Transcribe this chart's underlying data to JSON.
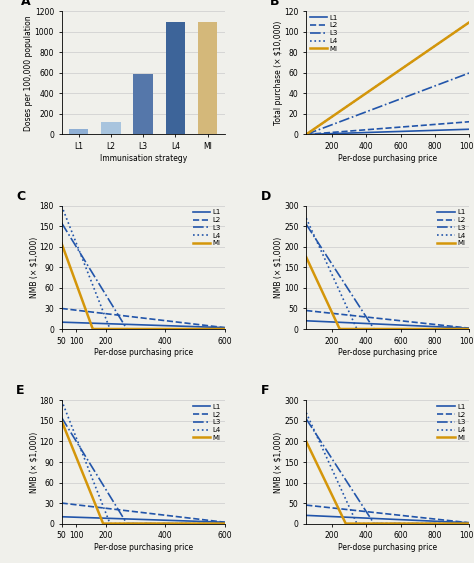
{
  "bar_categories": [
    "L1",
    "L2",
    "L3",
    "L4",
    "MI"
  ],
  "bar_values": [
    50,
    120,
    590,
    1100,
    1100
  ],
  "bar_colors": [
    "#8fafd4",
    "#a8c4de",
    "#5577aa",
    "#3d6499",
    "#d4b87a"
  ],
  "bar_ylabel": "Doses per 100,000 population",
  "bar_xlabel": "Immunisation strategy",
  "bar_ylim": [
    0,
    1200
  ],
  "bar_yticks": [
    0,
    200,
    400,
    600,
    800,
    1000,
    1200
  ],
  "line_colors": {
    "L1": "#2255aa",
    "L2": "#2255aa",
    "L3": "#2255aa",
    "L4": "#2255aa",
    "MI": "#d4960a"
  },
  "line_styles": {
    "L1": "-",
    "L2": "--",
    "L3": "-.",
    "L4": ":",
    "MI": "-"
  },
  "line_widths": {
    "L1": 1.2,
    "L2": 1.2,
    "L3": 1.2,
    "L4": 1.2,
    "MI": 1.8
  },
  "panel_B": {
    "xlabel": "Per-dose purchasing price",
    "ylabel": "Total purchase (× $10,000)",
    "xlim": [
      50,
      1000
    ],
    "ylim": [
      0,
      120
    ],
    "yticks": [
      0,
      20,
      40,
      60,
      80,
      100,
      120
    ],
    "xticks": [
      200,
      400,
      600,
      800,
      1000
    ],
    "slopes": {
      "L1": 0.0053,
      "L2": 0.013,
      "L3": 0.063,
      "L4": 0.115,
      "MI": 0.115
    }
  },
  "panel_C": {
    "xlabel": "Per-dose purchasing price",
    "ylabel": "NMB (× $1,000)",
    "xlim": [
      50,
      600
    ],
    "ylim": [
      0,
      180
    ],
    "yticks": [
      0,
      30,
      60,
      90,
      120,
      150,
      180
    ],
    "xticks": [
      50,
      100,
      200,
      400,
      600
    ],
    "lines": {
      "L1": {
        "x0": 50,
        "y0": 10,
        "x1": 600,
        "y1": 2
      },
      "L2": {
        "x0": 50,
        "y0": 30,
        "x1": 600,
        "y1": 2
      },
      "L3": {
        "x0": 50,
        "y0": 155,
        "x1": 270,
        "y1": 0
      },
      "L4": {
        "x0": 50,
        "y0": 180,
        "x1": 213,
        "y1": 0
      },
      "MI": {
        "x0": 50,
        "y0": 125,
        "x1": 155,
        "y1": 0
      }
    }
  },
  "panel_D": {
    "xlabel": "Per-dose purchasing price",
    "ylabel": "NMB (× $1,000)",
    "xlim": [
      50,
      1000
    ],
    "ylim": [
      0,
      300
    ],
    "yticks": [
      0,
      50,
      100,
      150,
      200,
      250,
      300
    ],
    "xticks": [
      200,
      400,
      600,
      800,
      1000
    ],
    "lines": {
      "L1": {
        "x0": 50,
        "y0": 20,
        "x1": 1000,
        "y1": 2
      },
      "L2": {
        "x0": 50,
        "y0": 45,
        "x1": 1000,
        "y1": 2
      },
      "L3": {
        "x0": 50,
        "y0": 255,
        "x1": 445,
        "y1": 0
      },
      "L4": {
        "x0": 50,
        "y0": 270,
        "x1": 345,
        "y1": 0
      },
      "MI": {
        "x0": 50,
        "y0": 175,
        "x1": 245,
        "y1": 0
      }
    }
  },
  "panel_E": {
    "xlabel": "Per-dose purchasing price",
    "ylabel": "NMB (× $1,000)",
    "xlim": [
      50,
      600
    ],
    "ylim": [
      0,
      180
    ],
    "yticks": [
      0,
      30,
      60,
      90,
      120,
      150,
      180
    ],
    "xticks": [
      50,
      100,
      200,
      400,
      600
    ],
    "lines": {
      "L1": {
        "x0": 50,
        "y0": 10,
        "x1": 600,
        "y1": 2
      },
      "L2": {
        "x0": 50,
        "y0": 30,
        "x1": 600,
        "y1": 2
      },
      "L3": {
        "x0": 50,
        "y0": 155,
        "x1": 270,
        "y1": 0
      },
      "L4": {
        "x0": 50,
        "y0": 180,
        "x1": 213,
        "y1": 0
      },
      "MI": {
        "x0": 50,
        "y0": 150,
        "x1": 190,
        "y1": 0
      }
    }
  },
  "panel_F": {
    "xlabel": "Per-dose purchasing price",
    "ylabel": "NMB (× $1,000)",
    "xlim": [
      50,
      1000
    ],
    "ylim": [
      0,
      300
    ],
    "yticks": [
      0,
      50,
      100,
      150,
      200,
      250,
      300
    ],
    "xticks": [
      200,
      400,
      600,
      800,
      1000
    ],
    "lines": {
      "L1": {
        "x0": 50,
        "y0": 20,
        "x1": 1000,
        "y1": 2
      },
      "L2": {
        "x0": 50,
        "y0": 45,
        "x1": 1000,
        "y1": 2
      },
      "L3": {
        "x0": 50,
        "y0": 255,
        "x1": 445,
        "y1": 0
      },
      "L4": {
        "x0": 50,
        "y0": 270,
        "x1": 345,
        "y1": 0
      },
      "MI": {
        "x0": 50,
        "y0": 200,
        "x1": 280,
        "y1": 0
      }
    }
  },
  "legend_entries": [
    "L1",
    "L2",
    "L3",
    "L4",
    "MI"
  ],
  "bg_color": "#f0f0eb",
  "grid_color": "#cccccc"
}
